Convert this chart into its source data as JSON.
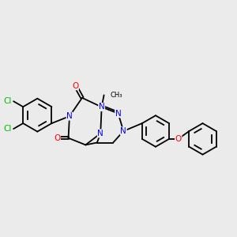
{
  "background_color": "#EBEBEB",
  "bond_color": "#000000",
  "N_color": "#0000FF",
  "O_color": "#FF0000",
  "Cl_color": "#00BB00",
  "figsize": [
    3.0,
    3.0
  ],
  "dpi": 100,
  "xlim": [
    -4.5,
    5.5
  ],
  "ylim": [
    -2.2,
    2.2
  ]
}
